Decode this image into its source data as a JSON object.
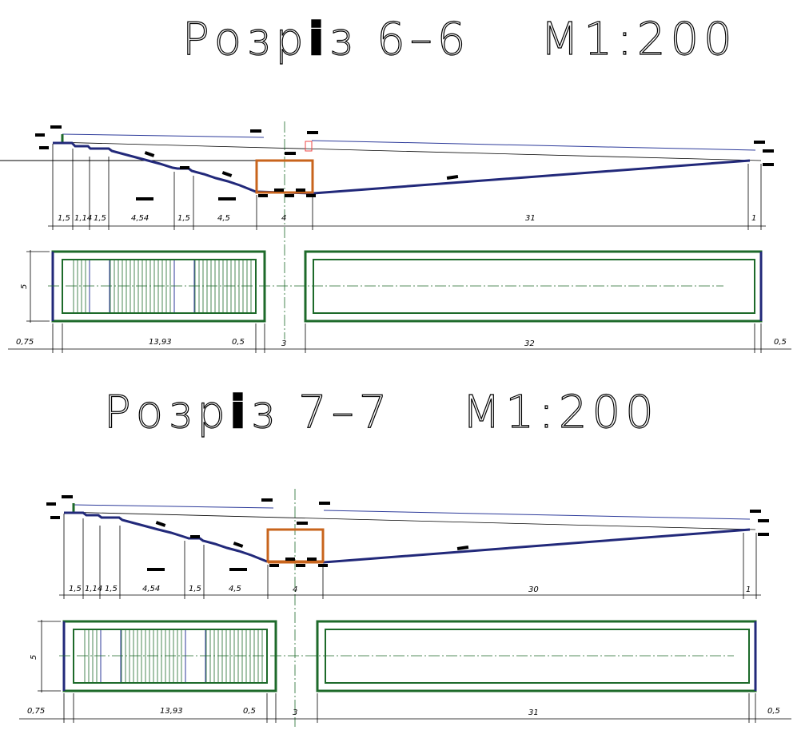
{
  "sections": [
    {
      "title_prefix": "Розр",
      "title_i": "і",
      "title_rest": "з  6–6",
      "scale": "М1:200",
      "elev_dims": [
        "1,5",
        "1,14",
        "1,5",
        "4,54",
        "1,5",
        "4,5",
        "4",
        "31",
        "1"
      ],
      "plan_dims": [
        "0,75",
        "13,93",
        "0,5",
        "3",
        "32",
        "0,5"
      ],
      "plan_height": "5"
    },
    {
      "title_prefix": "Розр",
      "title_i": "і",
      "title_rest": "з  7–7",
      "scale": "М1:200",
      "elev_dims": [
        "1,5",
        "1,14",
        "1,5",
        "4,54",
        "1,5",
        "4,5",
        "4",
        "30",
        "1"
      ],
      "plan_dims": [
        "0,75",
        "13,93",
        "0,5",
        "3",
        "31",
        "0,5"
      ],
      "plan_height": "5"
    }
  ],
  "colors": {
    "outline": "#22297a",
    "wall": "#1d6a2a",
    "frame": "#c8641c"
  }
}
